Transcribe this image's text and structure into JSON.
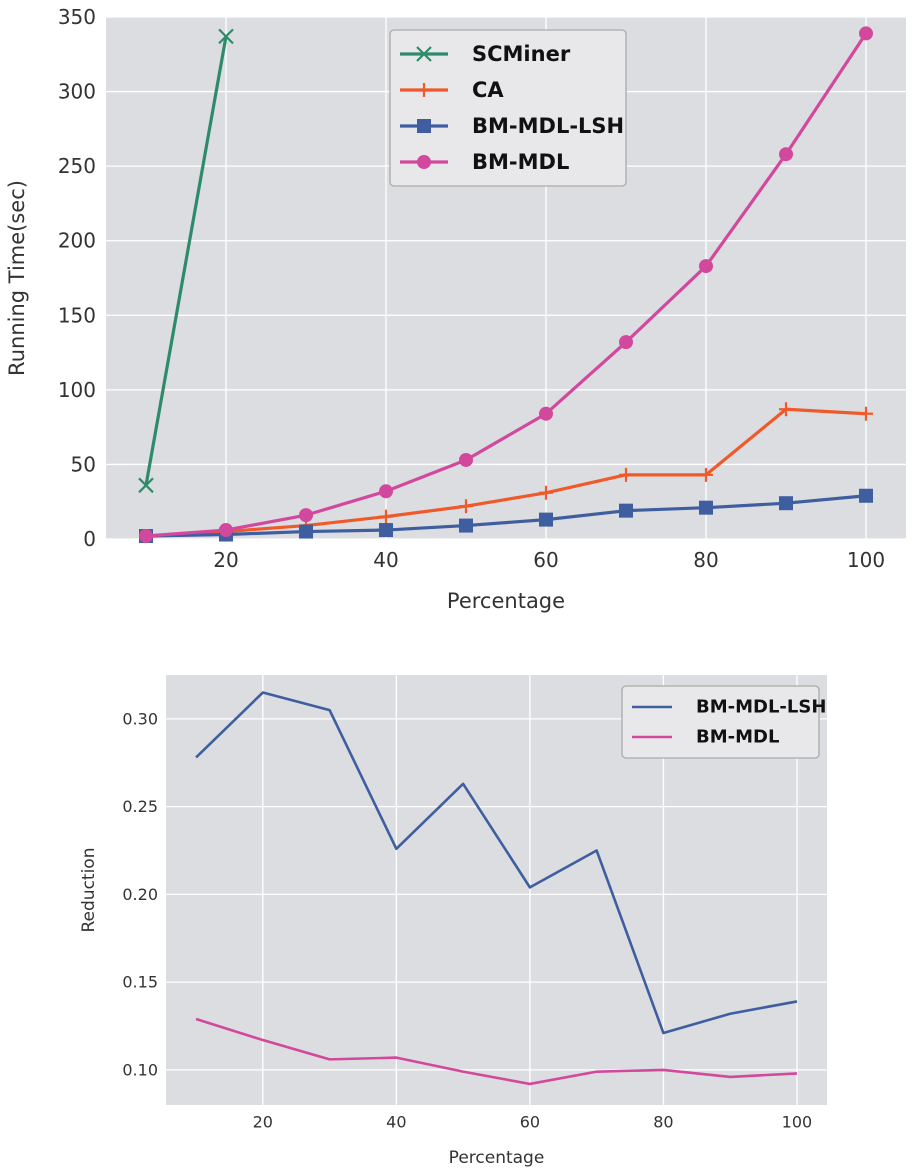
{
  "chart_data": [
    {
      "type": "line",
      "title": "",
      "xlabel": "Percentage",
      "ylabel": "Running Time(sec)",
      "xlim": [
        5,
        105
      ],
      "ylim": [
        0,
        350
      ],
      "xticks": [
        20,
        40,
        60,
        80,
        100
      ],
      "yticks": [
        0,
        50,
        100,
        150,
        200,
        250,
        300,
        350
      ],
      "grid": true,
      "legend_position": "top-center",
      "series": [
        {
          "name": "SCMiner",
          "color": "#2e8b6a",
          "marker": "x",
          "x": [
            10,
            20
          ],
          "y": [
            36,
            337
          ]
        },
        {
          "name": "CA",
          "color": "#f0592a",
          "marker": "+",
          "x": [
            10,
            20,
            30,
            40,
            50,
            60,
            70,
            80,
            90,
            100
          ],
          "y": [
            2,
            5,
            9,
            15,
            22,
            31,
            43,
            43,
            87,
            84
          ]
        },
        {
          "name": "BM-MDL-LSH",
          "color": "#3f5ea0",
          "marker": "s",
          "x": [
            10,
            20,
            30,
            40,
            50,
            60,
            70,
            80,
            90,
            100
          ],
          "y": [
            2,
            3,
            5,
            6,
            9,
            13,
            19,
            21,
            24,
            29
          ]
        },
        {
          "name": "BM-MDL",
          "color": "#d2489c",
          "marker": "o",
          "x": [
            10,
            20,
            30,
            40,
            50,
            60,
            70,
            80,
            90,
            100
          ],
          "y": [
            2,
            6,
            16,
            32,
            53,
            84,
            132,
            183,
            258,
            339
          ]
        }
      ]
    },
    {
      "type": "line",
      "title": "",
      "xlabel": "Percentage",
      "ylabel": "Reduction",
      "xlim": [
        5.5,
        104.5
      ],
      "ylim": [
        0.08,
        0.325
      ],
      "xticks": [
        20,
        40,
        60,
        80,
        100
      ],
      "yticks": [
        0.1,
        0.15,
        0.2,
        0.25,
        0.3
      ],
      "ytick_labels": [
        "0.10",
        "0.15",
        "0.20",
        "0.25",
        "0.30"
      ],
      "grid": true,
      "legend_position": "top-right",
      "series": [
        {
          "name": "BM-MDL-LSH",
          "color": "#3f5ea0",
          "marker": "none",
          "x": [
            10,
            20,
            30,
            40,
            50,
            60,
            70,
            80,
            90,
            100
          ],
          "y": [
            0.278,
            0.315,
            0.305,
            0.226,
            0.263,
            0.204,
            0.225,
            0.121,
            0.132,
            0.139
          ]
        },
        {
          "name": "BM-MDL",
          "color": "#d2489c",
          "marker": "none",
          "x": [
            10,
            20,
            30,
            40,
            50,
            60,
            70,
            80,
            90,
            100
          ],
          "y": [
            0.129,
            0.117,
            0.106,
            0.107,
            0.099,
            0.092,
            0.099,
            0.1,
            0.096,
            0.098
          ]
        }
      ]
    }
  ]
}
